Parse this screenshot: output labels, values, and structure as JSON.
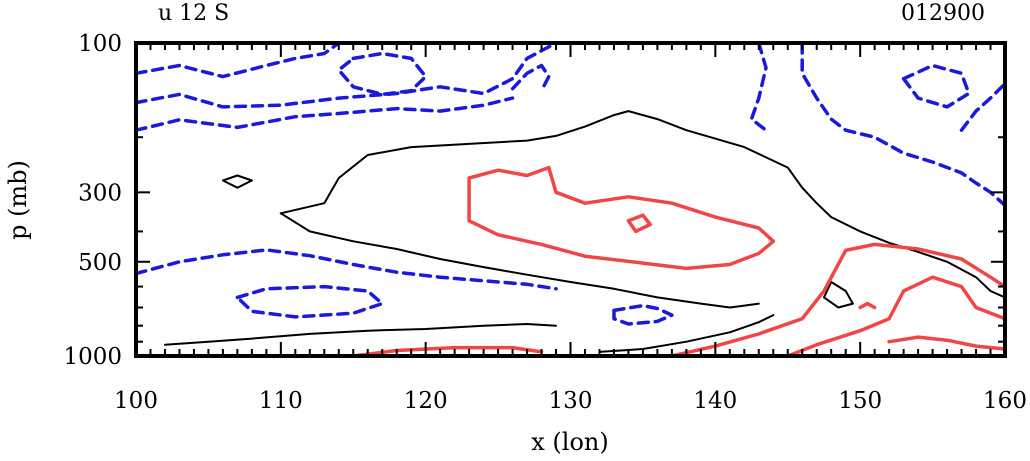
{
  "header": {
    "left_label": "u 12 S",
    "right_label": "012900"
  },
  "chart_data": {
    "type": "contour",
    "title": "",
    "xlabel": "x (lon)",
    "ylabel": "p (mb)",
    "xlim": [
      100,
      160
    ],
    "ylim": [
      100,
      1000
    ],
    "y_scale": "log",
    "y_inverted": true,
    "x_ticks": [
      100,
      110,
      120,
      130,
      140,
      150,
      160
    ],
    "x_tick_labels": [
      "100",
      "110",
      "120",
      "130",
      "140",
      "150",
      "160"
    ],
    "y_ticks": [
      100,
      300,
      500,
      1000
    ],
    "y_tick_labels": [
      "100",
      "300",
      "500",
      "1000"
    ],
    "colors": {
      "negative": "#1a1adc",
      "zero": "#000000",
      "positive": "#f04646"
    },
    "contours": [
      {
        "kind": "negative",
        "style": "dashed",
        "points": [
          [
            100,
            125
          ],
          [
            103,
            118
          ],
          [
            106,
            128
          ],
          [
            109,
            118
          ],
          [
            111,
            112
          ],
          [
            113,
            108
          ],
          [
            114,
            100
          ]
        ]
      },
      {
        "kind": "negative",
        "style": "dashed",
        "points": [
          [
            100,
            155
          ],
          [
            103,
            146
          ],
          [
            106,
            160
          ],
          [
            110,
            158
          ],
          [
            114,
            150
          ],
          [
            118,
            145
          ],
          [
            121,
            138
          ],
          [
            124,
            145
          ],
          [
            126,
            130
          ],
          [
            127,
            112
          ],
          [
            129,
            100
          ]
        ]
      },
      {
        "kind": "negative",
        "style": "dashed",
        "points": [
          [
            100,
            190
          ],
          [
            103,
            176
          ],
          [
            107,
            186
          ],
          [
            111,
            172
          ],
          [
            114,
            168
          ],
          [
            118,
            162
          ],
          [
            121,
            165
          ],
          [
            124,
            158
          ],
          [
            126,
            150
          ]
        ]
      },
      {
        "kind": "negative",
        "style": "dashed",
        "points": [
          [
            115,
            112
          ],
          [
            117,
            108
          ],
          [
            119,
            112
          ],
          [
            120,
            128
          ],
          [
            119,
            142
          ],
          [
            117,
            146
          ],
          [
            115,
            138
          ],
          [
            114,
            122
          ],
          [
            115,
            112
          ]
        ]
      },
      {
        "kind": "negative",
        "style": "dashed",
        "points": [
          [
            126,
            140
          ],
          [
            127,
            125
          ],
          [
            128,
            118
          ],
          [
            128.5,
            128
          ],
          [
            128,
            142
          ]
        ]
      },
      {
        "kind": "negative",
        "style": "dashed",
        "points": [
          [
            100,
            545
          ],
          [
            103,
            500
          ],
          [
            106,
            475
          ],
          [
            109,
            458
          ],
          [
            112,
            478
          ],
          [
            115,
            510
          ],
          [
            118,
            540
          ],
          [
            121,
            560
          ],
          [
            124,
            575
          ],
          [
            127,
            590
          ],
          [
            129,
            610
          ]
        ]
      },
      {
        "kind": "negative",
        "style": "dashed",
        "points": [
          [
            107,
            650
          ],
          [
            109,
            610
          ],
          [
            113,
            600
          ],
          [
            116,
            620
          ],
          [
            117,
            680
          ],
          [
            115,
            730
          ],
          [
            111,
            750
          ],
          [
            108,
            720
          ],
          [
            107,
            650
          ]
        ]
      },
      {
        "kind": "negative",
        "style": "dashed",
        "points": [
          [
            133,
            715
          ],
          [
            135,
            690
          ],
          [
            136,
            705
          ],
          [
            137,
            740
          ],
          [
            136,
            775
          ],
          [
            134,
            790
          ],
          [
            133,
            760
          ],
          [
            133,
            715
          ]
        ]
      },
      {
        "kind": "negative",
        "style": "dashed",
        "points": [
          [
            143,
            100
          ],
          [
            143.5,
            120
          ],
          [
            143,
            150
          ],
          [
            142.5,
            175
          ],
          [
            143.5,
            190
          ]
        ]
      },
      {
        "kind": "negative",
        "style": "dashed",
        "points": [
          [
            146,
            100
          ],
          [
            146,
            125
          ],
          [
            147,
            150
          ],
          [
            148,
            175
          ],
          [
            149,
            190
          ],
          [
            151,
            200
          ],
          [
            153,
            225
          ],
          [
            155,
            240
          ],
          [
            157,
            260
          ],
          [
            158,
            280
          ],
          [
            159,
            300
          ],
          [
            160,
            330
          ]
        ]
      },
      {
        "kind": "negative",
        "style": "dashed",
        "points": [
          [
            153,
            130
          ],
          [
            155,
            118
          ],
          [
            157,
            125
          ],
          [
            157.5,
            145
          ],
          [
            156,
            160
          ],
          [
            154,
            150
          ],
          [
            153,
            130
          ]
        ]
      },
      {
        "kind": "negative",
        "style": "dashed",
        "points": [
          [
            157,
            190
          ],
          [
            158,
            165
          ],
          [
            159,
            150
          ],
          [
            160,
            135
          ]
        ]
      },
      {
        "kind": "zero",
        "style": "solid",
        "points": [
          [
            110,
            350
          ],
          [
            113,
            325
          ],
          [
            114,
            270
          ],
          [
            116,
            228
          ],
          [
            119,
            215
          ],
          [
            123,
            210
          ],
          [
            127,
            205
          ],
          [
            129,
            198
          ],
          [
            131,
            185
          ],
          [
            133,
            170
          ],
          [
            134,
            165
          ],
          [
            136,
            175
          ],
          [
            138,
            190
          ],
          [
            142,
            215
          ],
          [
            145,
            250
          ],
          [
            146,
            290
          ],
          [
            147,
            325
          ],
          [
            148,
            360
          ],
          [
            150,
            400
          ],
          [
            152,
            435
          ],
          [
            154,
            465
          ],
          [
            156,
            500
          ],
          [
            158,
            560
          ],
          [
            159,
            620
          ],
          [
            160,
            650
          ]
        ]
      },
      {
        "kind": "zero",
        "style": "solid",
        "points": [
          [
            110,
            350
          ],
          [
            112,
            400
          ],
          [
            115,
            430
          ],
          [
            118,
            455
          ],
          [
            121,
            490
          ],
          [
            124,
            520
          ],
          [
            127,
            550
          ],
          [
            130,
            580
          ],
          [
            133,
            610
          ],
          [
            136,
            650
          ],
          [
            139,
            680
          ],
          [
            141,
            700
          ],
          [
            142,
            690
          ],
          [
            143,
            680
          ]
        ]
      },
      {
        "kind": "zero",
        "style": "solid",
        "points": [
          [
            106,
            275
          ],
          [
            107,
            265
          ],
          [
            108,
            275
          ],
          [
            107,
            290
          ],
          [
            106,
            275
          ]
        ]
      },
      {
        "kind": "zero",
        "style": "solid",
        "points": [
          [
            102,
            920
          ],
          [
            105,
            900
          ],
          [
            108,
            880
          ],
          [
            112,
            850
          ],
          [
            116,
            830
          ],
          [
            120,
            820
          ],
          [
            124,
            800
          ],
          [
            127,
            790
          ],
          [
            129,
            800
          ]
        ]
      },
      {
        "kind": "zero",
        "style": "solid",
        "points": [
          [
            132,
            970
          ],
          [
            135,
            950
          ],
          [
            138,
            900
          ],
          [
            141,
            840
          ],
          [
            143,
            780
          ],
          [
            144,
            740
          ]
        ]
      },
      {
        "kind": "zero",
        "style": "solid",
        "points": [
          [
            148,
            580
          ],
          [
            149,
            620
          ],
          [
            149.5,
            680
          ],
          [
            148.5,
            700
          ],
          [
            147.5,
            650
          ],
          [
            148,
            580
          ]
        ]
      },
      {
        "kind": "positive",
        "style": "solid",
        "points": [
          [
            123,
            270
          ],
          [
            125,
            255
          ],
          [
            127,
            265
          ],
          [
            128.5,
            250
          ],
          [
            129,
            300
          ],
          [
            131,
            325
          ],
          [
            134,
            310
          ],
          [
            137,
            325
          ],
          [
            140,
            360
          ],
          [
            143,
            390
          ],
          [
            144,
            430
          ],
          [
            143,
            470
          ],
          [
            141,
            510
          ],
          [
            138,
            525
          ],
          [
            135,
            505
          ],
          [
            131,
            480
          ],
          [
            128,
            440
          ],
          [
            125,
            410
          ],
          [
            123,
            370
          ],
          [
            123,
            270
          ]
        ]
      },
      {
        "kind": "positive",
        "style": "solid",
        "points": [
          [
            134,
            370
          ],
          [
            135,
            355
          ],
          [
            135.5,
            380
          ],
          [
            134.5,
            400
          ],
          [
            134,
            370
          ]
        ]
      },
      {
        "kind": "positive",
        "style": "solid",
        "points": [
          [
            137,
            1000
          ],
          [
            140,
            930
          ],
          [
            143,
            850
          ],
          [
            146,
            760
          ],
          [
            147.5,
            620
          ],
          [
            149,
            460
          ],
          [
            151,
            440
          ],
          [
            154,
            455
          ],
          [
            157,
            490
          ],
          [
            159,
            560
          ],
          [
            160,
            600
          ]
        ]
      },
      {
        "kind": "positive",
        "style": "solid",
        "points": [
          [
            145,
            1000
          ],
          [
            147,
            920
          ],
          [
            150,
            830
          ],
          [
            152,
            760
          ],
          [
            153,
            620
          ],
          [
            155,
            560
          ],
          [
            157,
            600
          ],
          [
            158,
            700
          ],
          [
            160,
            760
          ]
        ]
      },
      {
        "kind": "positive",
        "style": "solid",
        "points": [
          [
            115,
            1000
          ],
          [
            118,
            960
          ],
          [
            122,
            940
          ],
          [
            126,
            940
          ],
          [
            128,
            970
          ]
        ]
      },
      {
        "kind": "positive",
        "style": "solid",
        "points": [
          [
            150,
            700
          ],
          [
            150.5,
            680
          ],
          [
            151,
            700
          ]
        ]
      },
      {
        "kind": "positive",
        "style": "solid",
        "points": [
          [
            152,
            900
          ],
          [
            154,
            870
          ],
          [
            156,
            890
          ],
          [
            158,
            930
          ],
          [
            160,
            950
          ]
        ]
      }
    ]
  }
}
